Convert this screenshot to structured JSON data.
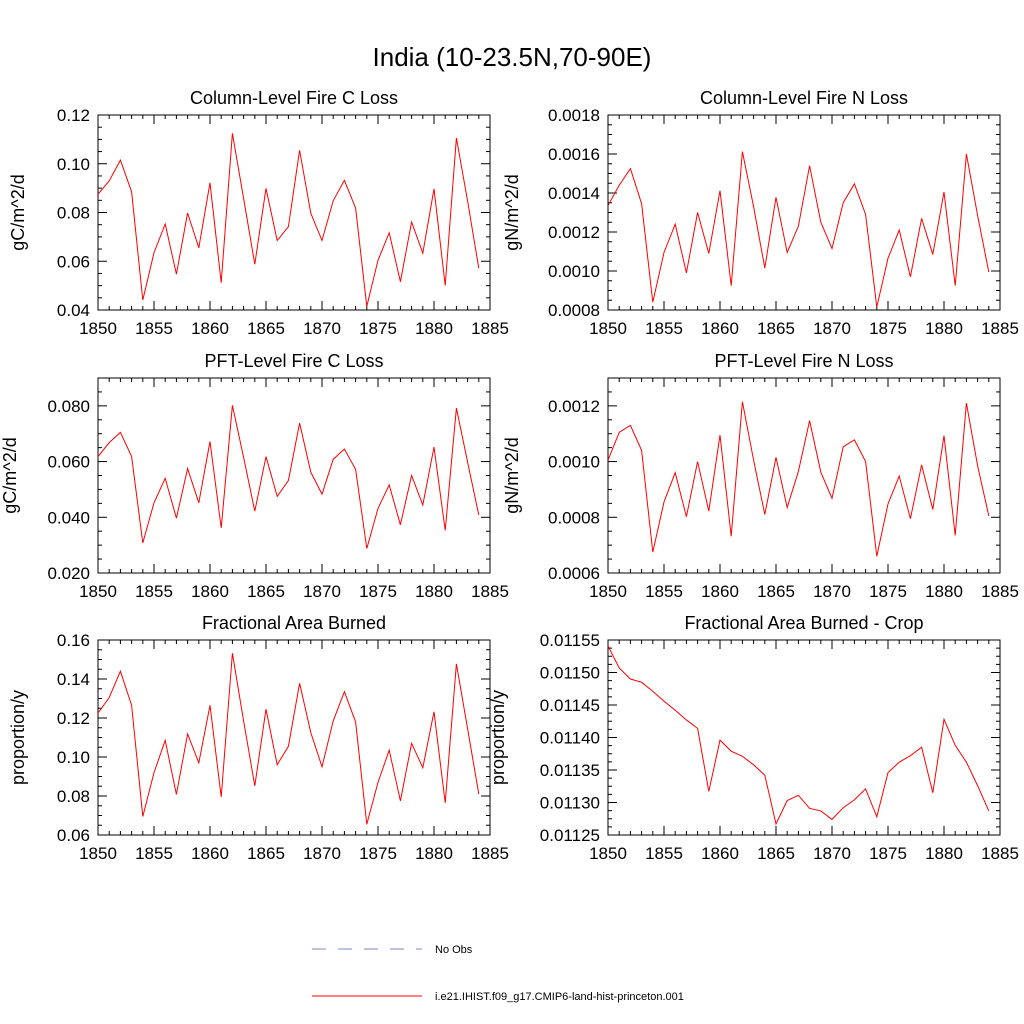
{
  "title": "India (10-23.5N,70-90E)",
  "colors": {
    "model": "#ff0000",
    "obs": "#7b86c9"
  },
  "legend": [
    {
      "label": "No Obs",
      "style": "dashed",
      "color": "#7b86c9"
    },
    {
      "label": "i.e21.IHIST.f09_g17.CMIP6-land-hist-princeton.001",
      "style": "solid",
      "color": "#ff0000"
    }
  ],
  "chart_data": [
    {
      "type": "line",
      "title": "Column-Level Fire C Loss",
      "ylabel": "gC/m^2/d",
      "xlabel": "",
      "xlim": [
        1850,
        1885
      ],
      "ylim": [
        0.04,
        0.12
      ],
      "xticks": [
        1850,
        1855,
        1860,
        1865,
        1870,
        1875,
        1880,
        1885
      ],
      "yticks": [
        0.04,
        0.06,
        0.08,
        0.1,
        0.12
      ],
      "ytick_labels": [
        "0.04",
        "0.06",
        "0.08",
        "0.10",
        "0.12"
      ],
      "yminor": 0.005,
      "x": [
        1850,
        1851,
        1852,
        1853,
        1854,
        1855,
        1856,
        1857,
        1858,
        1859,
        1860,
        1861,
        1862,
        1863,
        1864,
        1865,
        1866,
        1867,
        1868,
        1869,
        1870,
        1871,
        1872,
        1873,
        1874,
        1875,
        1876,
        1877,
        1878,
        1879,
        1880,
        1881,
        1882,
        1883,
        1884
      ],
      "series": [
        {
          "values": [
            0.0875,
            0.093,
            0.1015,
            0.0885,
            0.0441,
            0.0635,
            0.0753,
            0.0547,
            0.0798,
            0.0655,
            0.0922,
            0.0512,
            0.1125,
            0.0858,
            0.0588,
            0.0899,
            0.0685,
            0.0742,
            0.1055,
            0.0797,
            0.0685,
            0.0848,
            0.0932,
            0.0818,
            0.0415,
            0.0604,
            0.0717,
            0.0516,
            0.0761,
            0.0633,
            0.0897,
            0.0501,
            0.1106,
            0.0847,
            0.0571
          ]
        }
      ]
    },
    {
      "type": "line",
      "title": "Column-Level Fire N Loss",
      "ylabel": "gN/m^2/d",
      "xlabel": "",
      "xlim": [
        1850,
        1885
      ],
      "ylim": [
        0.0008,
        0.0018
      ],
      "xticks": [
        1850,
        1855,
        1860,
        1865,
        1870,
        1875,
        1880,
        1885
      ],
      "yticks": [
        0.0008,
        0.001,
        0.0012,
        0.0014,
        0.0016,
        0.0018
      ],
      "ytick_labels": [
        "0.0008",
        "0.0010",
        "0.0012",
        "0.0014",
        "0.0016",
        "0.0018"
      ],
      "yminor": 5e-05,
      "x": [
        1850,
        1851,
        1852,
        1853,
        1854,
        1855,
        1856,
        1857,
        1858,
        1859,
        1860,
        1861,
        1862,
        1863,
        1864,
        1865,
        1866,
        1867,
        1868,
        1869,
        1870,
        1871,
        1872,
        1873,
        1874,
        1875,
        1876,
        1877,
        1878,
        1879,
        1880,
        1881,
        1882,
        1883,
        1884
      ],
      "series": [
        {
          "values": [
            0.001335,
            0.00144,
            0.001525,
            0.001345,
            0.00084,
            0.001095,
            0.00124,
            0.00099,
            0.0013,
            0.00109,
            0.001412,
            0.000925,
            0.001612,
            0.00133,
            0.001015,
            0.001378,
            0.001095,
            0.00123,
            0.00154,
            0.00125,
            0.001115,
            0.00135,
            0.001447,
            0.00129,
            0.000815,
            0.001065,
            0.00121,
            0.00097,
            0.00127,
            0.001085,
            0.001405,
            0.000925,
            0.0016,
            0.001285,
            0.000995
          ]
        }
      ]
    },
    {
      "type": "line",
      "title": "PFT-Level Fire C Loss",
      "ylabel": "gC/m^2/d",
      "xlabel": "",
      "xlim": [
        1850,
        1885
      ],
      "ylim": [
        0.02,
        0.09
      ],
      "xticks": [
        1850,
        1855,
        1860,
        1865,
        1870,
        1875,
        1880,
        1885
      ],
      "yticks": [
        0.02,
        0.04,
        0.06,
        0.08
      ],
      "ytick_labels": [
        "0.020",
        "0.040",
        "0.060",
        "0.080"
      ],
      "yminor": 0.005,
      "x": [
        1850,
        1851,
        1852,
        1853,
        1854,
        1855,
        1856,
        1857,
        1858,
        1859,
        1860,
        1861,
        1862,
        1863,
        1864,
        1865,
        1866,
        1867,
        1868,
        1869,
        1870,
        1871,
        1872,
        1873,
        1874,
        1875,
        1876,
        1877,
        1878,
        1879,
        1880,
        1881,
        1882,
        1883,
        1884
      ],
      "series": [
        {
          "values": [
            0.0618,
            0.0668,
            0.0705,
            0.0618,
            0.0308,
            0.0452,
            0.054,
            0.0397,
            0.0575,
            0.0452,
            0.0672,
            0.0362,
            0.0802,
            0.0615,
            0.0422,
            0.0618,
            0.0475,
            0.0532,
            0.0738,
            0.0562,
            0.0483,
            0.0608,
            0.0645,
            0.0572,
            0.0288,
            0.0432,
            0.0516,
            0.0373,
            0.055,
            0.0444,
            0.0652,
            0.0353,
            0.0792,
            0.0598,
            0.0408
          ]
        }
      ]
    },
    {
      "type": "line",
      "title": "PFT-Level Fire N Loss",
      "ylabel": "gN/m^2/d",
      "xlabel": "",
      "xlim": [
        1850,
        1885
      ],
      "ylim": [
        0.0006,
        0.0013
      ],
      "xticks": [
        1850,
        1855,
        1860,
        1865,
        1870,
        1875,
        1880,
        1885
      ],
      "yticks": [
        0.0006,
        0.0008,
        0.001,
        0.0012
      ],
      "ytick_labels": [
        "0.0006",
        "0.0008",
        "0.0010",
        "0.0012"
      ],
      "yminor": 5e-05,
      "x": [
        1850,
        1851,
        1852,
        1853,
        1854,
        1855,
        1856,
        1857,
        1858,
        1859,
        1860,
        1861,
        1862,
        1863,
        1864,
        1865,
        1866,
        1867,
        1868,
        1869,
        1870,
        1871,
        1872,
        1873,
        1874,
        1875,
        1876,
        1877,
        1878,
        1879,
        1880,
        1881,
        1882,
        1883,
        1884
      ],
      "series": [
        {
          "values": [
            0.001005,
            0.001105,
            0.00113,
            0.00104,
            0.000675,
            0.000855,
            0.00096,
            0.000802,
            0.001,
            0.000822,
            0.001095,
            0.000732,
            0.001215,
            0.001005,
            0.00081,
            0.001015,
            0.000835,
            0.000965,
            0.001147,
            0.000962,
            0.000868,
            0.001053,
            0.001078,
            0.001,
            0.00066,
            0.000848,
            0.000948,
            0.000795,
            0.000988,
            0.000828,
            0.001093,
            0.000735,
            0.00121,
            0.000985,
            0.000805
          ]
        }
      ]
    },
    {
      "type": "line",
      "title": "Fractional Area Burned",
      "ylabel": "proportion/y",
      "xlabel": "",
      "xlim": [
        1850,
        1885
      ],
      "ylim": [
        0.06,
        0.16
      ],
      "xticks": [
        1850,
        1855,
        1860,
        1865,
        1870,
        1875,
        1880,
        1885
      ],
      "yticks": [
        0.06,
        0.08,
        0.1,
        0.12,
        0.14,
        0.16
      ],
      "ytick_labels": [
        "0.06",
        "0.08",
        "0.10",
        "0.12",
        "0.14",
        "0.16"
      ],
      "yminor": 0.005,
      "x": [
        1850,
        1851,
        1852,
        1853,
        1854,
        1855,
        1856,
        1857,
        1858,
        1859,
        1860,
        1861,
        1862,
        1863,
        1864,
        1865,
        1866,
        1867,
        1868,
        1869,
        1870,
        1871,
        1872,
        1873,
        1874,
        1875,
        1876,
        1877,
        1878,
        1879,
        1880,
        1881,
        1882,
        1883,
        1884
      ],
      "series": [
        {
          "values": [
            0.1225,
            0.1305,
            0.144,
            0.1265,
            0.0695,
            0.092,
            0.1085,
            0.0808,
            0.1118,
            0.097,
            0.1265,
            0.0795,
            0.1532,
            0.1185,
            0.0852,
            0.1245,
            0.096,
            0.1055,
            0.1378,
            0.1125,
            0.095,
            0.1185,
            0.1335,
            0.118,
            0.0655,
            0.087,
            0.1035,
            0.0775,
            0.107,
            0.0945,
            0.1232,
            0.0765,
            0.1478,
            0.1145,
            0.081
          ]
        }
      ]
    },
    {
      "type": "line",
      "title": "Fractional Area Burned - Crop",
      "ylabel": "proportion/y",
      "xlabel": "",
      "xlim": [
        1850,
        1885
      ],
      "ylim": [
        0.01125,
        0.01155
      ],
      "xticks": [
        1850,
        1855,
        1860,
        1865,
        1870,
        1875,
        1880,
        1885
      ],
      "yticks": [
        0.01125,
        0.0113,
        0.01135,
        0.0114,
        0.01145,
        0.0115,
        0.01155
      ],
      "ytick_labels": [
        "0.01125",
        "0.01130",
        "0.01135",
        "0.01140",
        "0.01145",
        "0.01150",
        "0.01155"
      ],
      "yminor": 1.25e-05,
      "x": [
        1850,
        1851,
        1852,
        1853,
        1854,
        1855,
        1856,
        1857,
        1858,
        1859,
        1860,
        1861,
        1862,
        1863,
        1864,
        1865,
        1866,
        1867,
        1868,
        1869,
        1870,
        1871,
        1872,
        1873,
        1874,
        1875,
        1876,
        1877,
        1878,
        1879,
        1880,
        1881,
        1882,
        1883,
        1884
      ],
      "series": [
        {
          "values": [
            0.011541,
            0.011507,
            0.01149,
            0.011485,
            0.011471,
            0.011456,
            0.011442,
            0.011427,
            0.011414,
            0.011317,
            0.011396,
            0.011379,
            0.011371,
            0.011358,
            0.011342,
            0.011267,
            0.011303,
            0.011311,
            0.011291,
            0.011287,
            0.011274,
            0.011292,
            0.011304,
            0.011321,
            0.011278,
            0.011346,
            0.011362,
            0.011372,
            0.011385,
            0.011315,
            0.011428,
            0.011388,
            0.011362,
            0.011326,
            0.011287
          ]
        }
      ]
    }
  ]
}
